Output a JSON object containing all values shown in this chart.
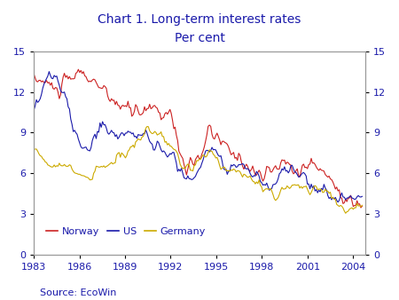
{
  "title": "Chart 1. Long-term interest rates",
  "subtitle": "Per cent",
  "source": "Source: EcoWin",
  "title_color": "#1a1aaa",
  "subtitle_color": "#1a1aaa",
  "source_color": "#1a1aaa",
  "norway_color": "#cc2222",
  "us_color": "#1a1aaa",
  "germany_color": "#ccaa00",
  "ylim": [
    0,
    15
  ],
  "yticks": [
    0,
    3,
    6,
    9,
    12,
    15
  ],
  "xtick_years": [
    1983,
    1986,
    1989,
    1992,
    1995,
    1998,
    2001,
    2004
  ],
  "legend_labels": [
    "Norway",
    "US",
    "Germany"
  ],
  "background_color": "#ffffff",
  "plot_background": "#ffffff"
}
